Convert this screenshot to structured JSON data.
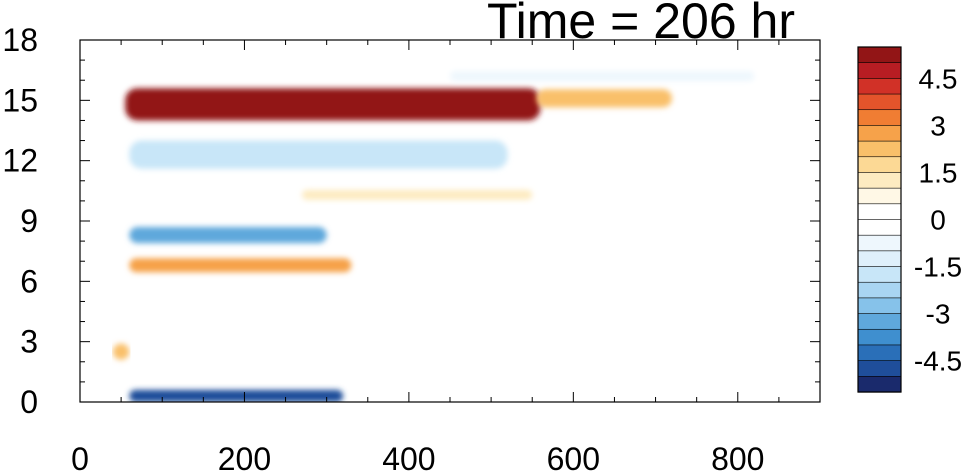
{
  "chart_data": {
    "type": "heatmap",
    "title": "Time = 206 hr",
    "xlabel": "",
    "ylabel": "",
    "xlim": [
      0,
      900
    ],
    "ylim": [
      0,
      18
    ],
    "x_ticks": [
      "0",
      "200",
      "400",
      "600",
      "800"
    ],
    "x_tick_values": [
      0,
      200,
      400,
      600,
      800
    ],
    "y_ticks": [
      "0",
      "3",
      "6",
      "9",
      "12",
      "15",
      "18"
    ],
    "y_tick_values": [
      0,
      3,
      6,
      9,
      12,
      15,
      18
    ],
    "colorbar": {
      "min": -5.5,
      "max": 5.5,
      "step": 0.5,
      "labels": [
        "4.5",
        "3",
        "1.5",
        "0",
        "-1.5",
        "-3",
        "-4.5"
      ],
      "label_values": [
        4.5,
        3,
        1.5,
        0,
        -1.5,
        -3,
        -4.5
      ],
      "colors": [
        "#1a2a6c",
        "#1f4e9a",
        "#2a6fb8",
        "#3f8fcf",
        "#5fa8dc",
        "#86c2ea",
        "#a9d5f2",
        "#c8e6f8",
        "#dff0fb",
        "#eef7fd",
        "#ffffff",
        "#ffffff",
        "#fff8e6",
        "#fdebc1",
        "#fcd995",
        "#f9c06a",
        "#f6a24a",
        "#f07d33",
        "#e4542b",
        "#d13127",
        "#b71d23",
        "#921516"
      ]
    },
    "features": [
      {
        "x": [
          55,
          560
        ],
        "y_center": 14.8,
        "thickness": 1.6,
        "value": 5.5
      },
      {
        "x": [
          555,
          720
        ],
        "y_center": 15.1,
        "thickness": 0.9,
        "value": 2.2
      },
      {
        "x": [
          60,
          520
        ],
        "y_center": 12.3,
        "thickness": 1.4,
        "value": -2.0
      },
      {
        "x": [
          60,
          300
        ],
        "y_center": 8.3,
        "thickness": 0.8,
        "value": -3.5
      },
      {
        "x": [
          60,
          330
        ],
        "y_center": 6.8,
        "thickness": 0.7,
        "value": 2.5
      },
      {
        "x": [
          270,
          550
        ],
        "y_center": 10.3,
        "thickness": 0.5,
        "value": 1.2
      },
      {
        "x": [
          60,
          320
        ],
        "y_center": 0.3,
        "thickness": 0.6,
        "value": -5.0
      },
      {
        "x": [
          40,
          60
        ],
        "y_center": 2.5,
        "thickness": 0.8,
        "value": 2.0
      },
      {
        "x": [
          450,
          820
        ],
        "y_center": 16.2,
        "thickness": 0.5,
        "value": -1.0
      }
    ]
  }
}
